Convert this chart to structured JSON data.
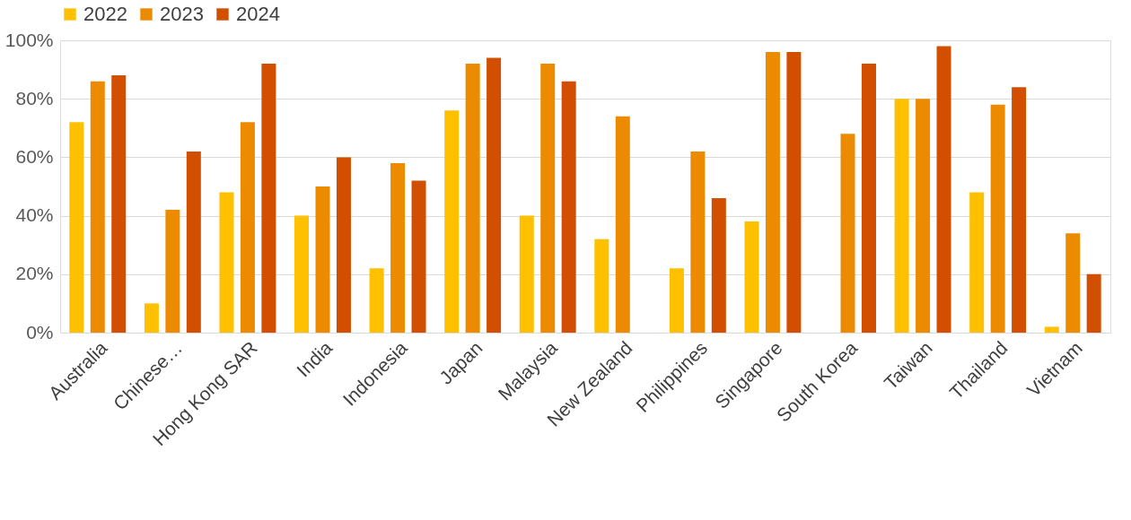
{
  "chart_data": {
    "type": "bar",
    "categories": [
      "Australia",
      "Chinese…",
      "Hong Kong SAR",
      "India",
      "Indonesia",
      "Japan",
      "Malaysia",
      "New Zealand",
      "Philippines",
      "Singapore",
      "South Korea",
      "Taiwan",
      "Thailand",
      "Vietnam"
    ],
    "series": [
      {
        "name": "2022",
        "color": "#ffc000",
        "values": [
          72,
          10,
          48,
          40,
          22,
          76,
          40,
          32,
          22,
          38,
          null,
          80,
          48,
          2
        ]
      },
      {
        "name": "2023",
        "color": "#ed8b00",
        "values": [
          86,
          42,
          72,
          50,
          58,
          92,
          92,
          74,
          62,
          96,
          68,
          80,
          78,
          34
        ]
      },
      {
        "name": "2024",
        "color": "#d24e00",
        "values": [
          88,
          62,
          92,
          60,
          52,
          94,
          86,
          null,
          46,
          96,
          92,
          98,
          84,
          20
        ]
      }
    ],
    "ylim": [
      0,
      100
    ],
    "yticks": [
      {
        "value": 0,
        "label": "0%"
      },
      {
        "value": 20,
        "label": "20%"
      },
      {
        "value": 40,
        "label": "40%"
      },
      {
        "value": 60,
        "label": "60%"
      },
      {
        "value": 80,
        "label": "80%"
      },
      {
        "value": 100,
        "label": "100%"
      }
    ],
    "grid": "y",
    "legend": "top"
  }
}
